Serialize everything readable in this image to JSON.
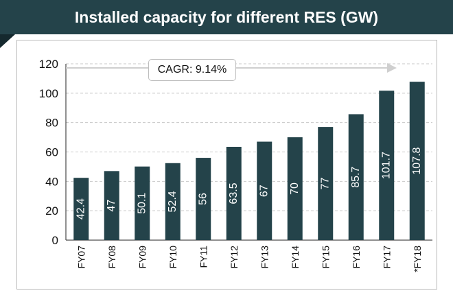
{
  "header": {
    "title": "Installed capacity for different RES (GW)"
  },
  "annotation": {
    "cagr_label": "CAGR: 9.14%"
  },
  "colors": {
    "header_bg": "#24434a",
    "bar": "#24434a",
    "bar_label": "#ffffff"
  },
  "chart_data": {
    "type": "bar",
    "title": "Installed capacity for different RES (GW)",
    "xlabel": "",
    "ylabel": "",
    "categories": [
      "FY07",
      "FY08",
      "FY09",
      "FY10",
      "FY11",
      "FY12",
      "FY13",
      "FY14",
      "FY15",
      "FY16",
      "FY17",
      "*FY18"
    ],
    "values": [
      42.4,
      47,
      50.1,
      52.4,
      56,
      63.5,
      67,
      70,
      77,
      85.7,
      101.7,
      107.8
    ],
    "value_labels": [
      "42.4",
      "47",
      "50.1",
      "52.4",
      "56",
      "63.5",
      "67",
      "70",
      "77",
      "85.7",
      "101.7",
      "107.8"
    ],
    "ylim": [
      0,
      120
    ],
    "yticks": [
      0,
      20,
      40,
      60,
      80,
      100,
      120
    ],
    "grid": true,
    "legend": "none"
  }
}
